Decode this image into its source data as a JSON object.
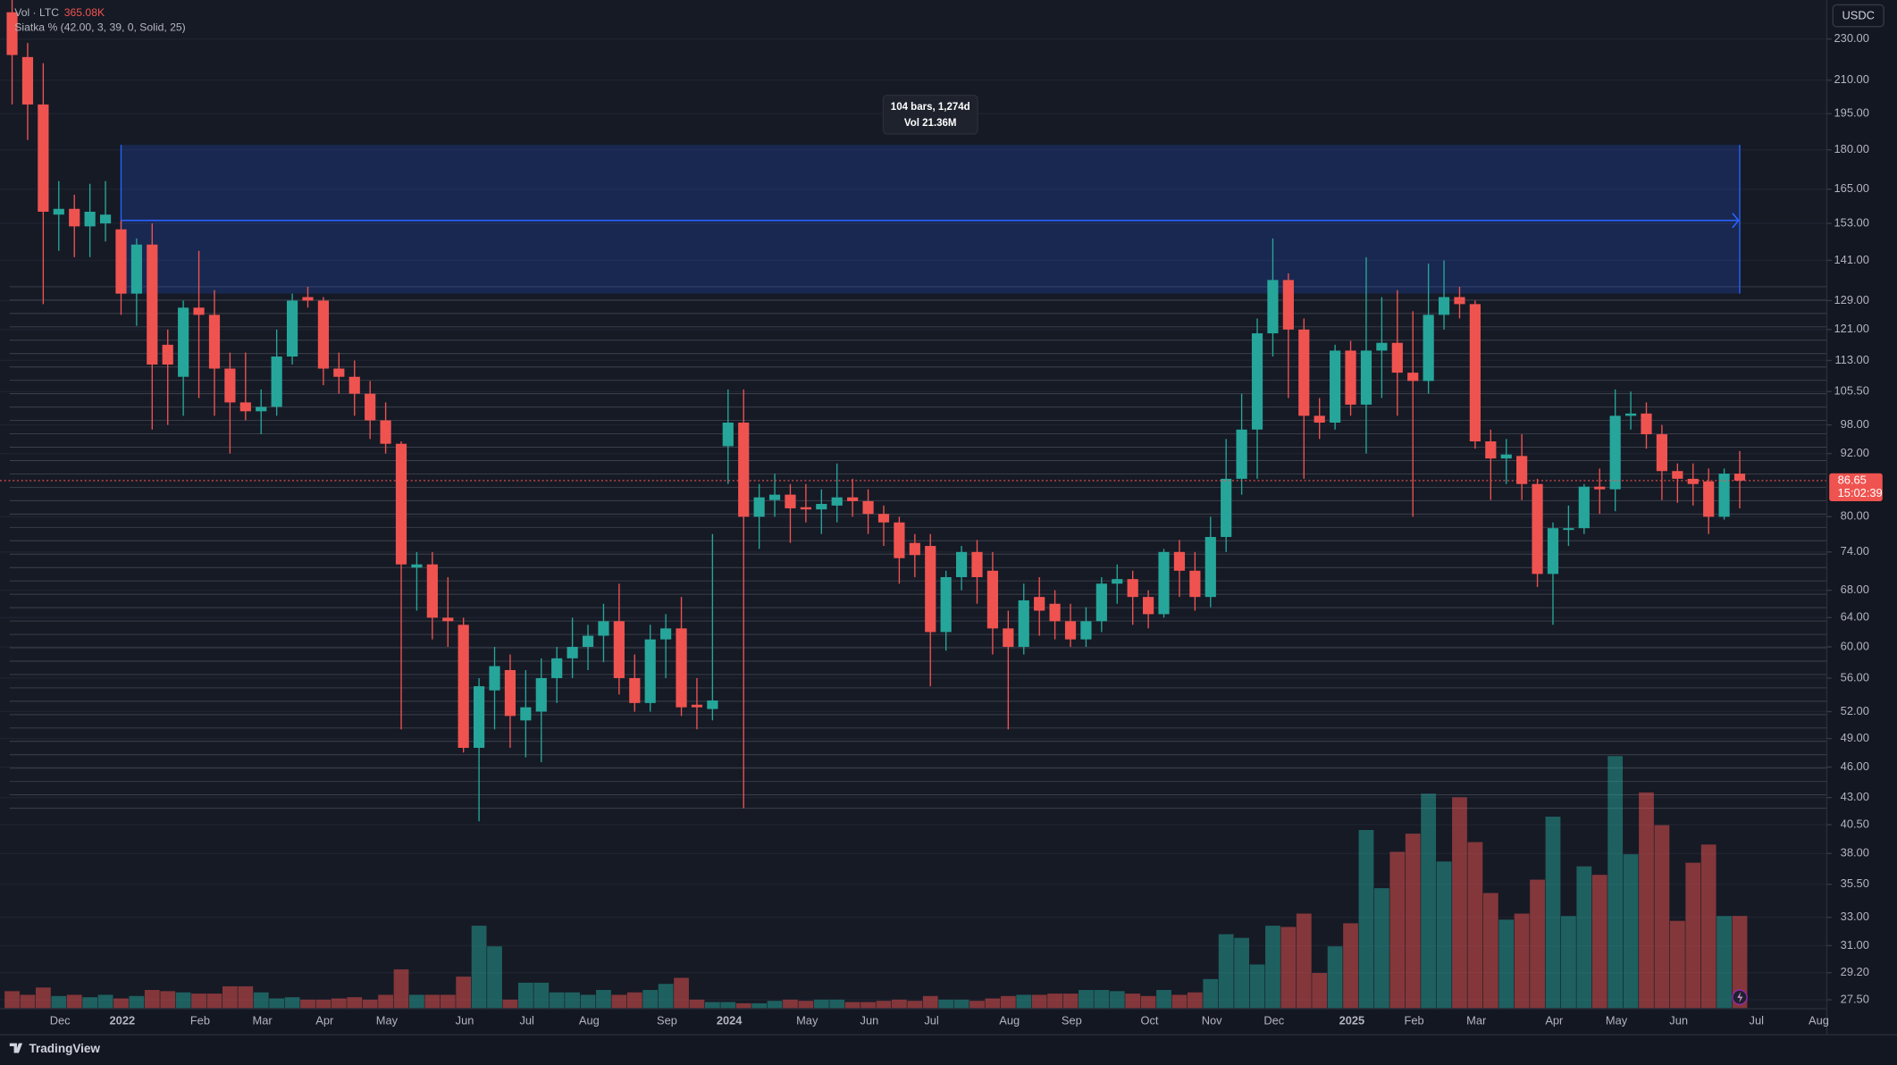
{
  "chart_data": {
    "type": "candlestick",
    "currency": "USDC",
    "volume_title": "Vol · LTC",
    "volume_value_label": "365.08K",
    "indicator_label": "Siatka % (42.00, 3, 39, 0, Solid, 25)",
    "grid_lines": {
      "base": 42,
      "step_pct": 3,
      "count": 39
    },
    "countdown": "15:02:39",
    "up_color": "#26a69a",
    "down_color": "#ef5350",
    "log_scale": true,
    "ylim": [
      27,
      250.7
    ],
    "yticks": [
      {
        "value": 230,
        "label": "230.00"
      },
      {
        "value": 210,
        "label": "210.00"
      },
      {
        "value": 195,
        "label": "195.00"
      },
      {
        "value": 180,
        "label": "180.00"
      },
      {
        "value": 165,
        "label": "165.00"
      },
      {
        "value": 153,
        "label": "153.00"
      },
      {
        "value": 141,
        "label": "141.00"
      },
      {
        "value": 129,
        "label": "129.00"
      },
      {
        "value": 121,
        "label": "121.00"
      },
      {
        "value": 113,
        "label": "113.00"
      },
      {
        "value": 105.5,
        "label": "105.50"
      },
      {
        "value": 98,
        "label": "98.00"
      },
      {
        "value": 92,
        "label": "92.00"
      },
      {
        "value": 80,
        "label": "80.00"
      },
      {
        "value": 74,
        "label": "74.00"
      },
      {
        "value": 68,
        "label": "68.00"
      },
      {
        "value": 64,
        "label": "64.00"
      },
      {
        "value": 60,
        "label": "60.00"
      },
      {
        "value": 56,
        "label": "56.00"
      },
      {
        "value": 52,
        "label": "52.00"
      },
      {
        "value": 49,
        "label": "49.00"
      },
      {
        "value": 46,
        "label": "46.00"
      },
      {
        "value": 43,
        "label": "43.00"
      },
      {
        "value": 40.5,
        "label": "40.50"
      },
      {
        "value": 38,
        "label": "38.00"
      },
      {
        "value": 35.5,
        "label": "35.50"
      },
      {
        "value": 33,
        "label": "33.00"
      },
      {
        "value": 31,
        "label": "31.00"
      },
      {
        "value": 29.2,
        "label": "29.20"
      },
      {
        "value": 27.5,
        "label": "27.50"
      }
    ],
    "categories": [
      null,
      null,
      null,
      "Dec",
      null,
      null,
      null,
      "2022",
      null,
      null,
      null,
      null,
      "Feb",
      null,
      null,
      null,
      "Mar",
      null,
      null,
      null,
      "Apr",
      null,
      null,
      null,
      "May",
      null,
      null,
      null,
      null,
      "Jun",
      null,
      null,
      null,
      "Jul",
      null,
      null,
      null,
      "Aug",
      null,
      null,
      null,
      null,
      "Sep",
      null,
      null,
      null,
      "2024",
      null,
      null,
      null,
      null,
      "May",
      null,
      null,
      null,
      "Jun",
      null,
      null,
      null,
      "Jul",
      null,
      null,
      null,
      null,
      "Aug",
      null,
      null,
      null,
      "Sep",
      null,
      null,
      null,
      null,
      "Oct",
      null,
      null,
      null,
      "Nov",
      null,
      null,
      null,
      "Dec",
      null,
      null,
      null,
      null,
      "2025",
      null,
      null,
      null,
      "Feb",
      null,
      null,
      null,
      "Mar",
      null,
      null,
      null,
      null,
      "Apr",
      null,
      null,
      null,
      "May",
      null,
      null,
      null,
      "Jun",
      null,
      null,
      null,
      null,
      "Jul",
      null,
      null,
      null,
      "Aug"
    ],
    "open": [
      244,
      221,
      199,
      156,
      158,
      152,
      153,
      151,
      131,
      146,
      117,
      109,
      127,
      125,
      111,
      103,
      101,
      102,
      114,
      130,
      129,
      111,
      109,
      105,
      99,
      94,
      71.5,
      72,
      64,
      63,
      48,
      54.5,
      57,
      51,
      52,
      56,
      58.5,
      60,
      61.5,
      63.5,
      56,
      53,
      61,
      62.5,
      52.8,
      52.3,
      93.5,
      98.5,
      80,
      83,
      84,
      81.7,
      81.3,
      82,
      83.5,
      82.8,
      80.5,
      79,
      75.5,
      75,
      62,
      70,
      74,
      71,
      62.5,
      60,
      67,
      66,
      63.5,
      61,
      63.5,
      69,
      69.7,
      67,
      64.5,
      74,
      71,
      67,
      76.5,
      87,
      97,
      120,
      135,
      121,
      100,
      98.5,
      115.5,
      102.5,
      115.5,
      117.5,
      110,
      108,
      125,
      130,
      128,
      94.5,
      91,
      91.5,
      86,
      70.5,
      77.7,
      78,
      85.5,
      85,
      100,
      100.5,
      96,
      88.5,
      87,
      86.5,
      80,
      88,
      null,
      null,
      null,
      null,
      null
    ],
    "high": [
      252,
      228,
      218,
      168,
      163,
      167,
      168,
      154,
      148,
      153,
      121,
      129,
      144,
      132,
      115,
      115,
      106,
      121,
      131,
      133,
      130,
      115,
      113,
      108,
      103,
      94.5,
      74,
      74,
      70,
      64,
      56,
      60,
      59,
      57,
      58.5,
      60,
      64,
      63,
      66,
      69,
      59,
      63,
      64.5,
      67,
      56,
      77,
      106,
      106,
      86,
      88,
      86,
      86,
      85,
      90,
      87,
      85,
      82,
      80,
      77,
      77,
      71,
      75,
      76,
      74,
      65,
      69,
      70,
      68,
      66,
      65.5,
      70,
      72,
      71,
      68,
      74.5,
      76,
      74,
      80,
      95,
      105,
      124,
      148,
      137,
      124,
      104,
      117,
      118,
      142,
      130,
      132,
      126,
      140,
      141,
      133,
      129,
      97,
      95,
      96,
      87,
      79,
      82,
      86,
      89,
      106,
      105.5,
      103,
      98,
      90,
      90,
      89,
      89,
      92.5,
      null,
      null,
      null,
      null,
      null
    ],
    "low": [
      199,
      184,
      128,
      144,
      142,
      142,
      147,
      125,
      122,
      97,
      98,
      100,
      104,
      100,
      92,
      99,
      96,
      100,
      112,
      127,
      107,
      105,
      100,
      95,
      92,
      50,
      65,
      61,
      60,
      47.5,
      40.8,
      50,
      48,
      47,
      46.5,
      53,
      56,
      57,
      58,
      54,
      52,
      52,
      56,
      51.5,
      50,
      51,
      86,
      42,
      74.5,
      80,
      75.5,
      79,
      77,
      79,
      80,
      77,
      75,
      69,
      70,
      55,
      59.5,
      68,
      66,
      59,
      50,
      59,
      61.5,
      61,
      60,
      60,
      62,
      66,
      63,
      62.5,
      64,
      67,
      65,
      65.5,
      74,
      84,
      87,
      114,
      104,
      87,
      95,
      97,
      100,
      92,
      104,
      100,
      80,
      105,
      121,
      124,
      93,
      83,
      86,
      83,
      68.5,
      63,
      75,
      77,
      80.5,
      81,
      97,
      93,
      83,
      82.5,
      82,
      77,
      79.5,
      81.5,
      null,
      null,
      null,
      null,
      null
    ],
    "close": [
      222,
      199,
      157,
      158,
      152,
      157,
      156,
      131,
      146,
      112,
      112,
      127,
      125,
      111,
      103,
      101,
      102,
      114,
      129,
      129,
      111,
      109,
      105,
      99,
      94,
      72,
      72,
      64,
      63.5,
      48,
      55,
      57.5,
      51.5,
      52.5,
      56,
      58.5,
      60,
      61.5,
      63.5,
      56,
      53,
      61,
      62.5,
      52.5,
      52.5,
      53.3,
      98.5,
      80,
      83.5,
      84,
      81.5,
      81.3,
      82.3,
      83.5,
      82.8,
      80.5,
      79,
      73,
      73.5,
      62,
      70,
      74,
      70,
      62.5,
      60,
      66.5,
      65,
      63.5,
      61,
      63.5,
      69,
      69.7,
      67,
      64.5,
      74,
      71,
      67,
      76.5,
      87,
      97,
      120,
      135,
      121,
      100,
      98.5,
      115.5,
      102.5,
      115.5,
      117.5,
      110,
      108,
      125,
      130,
      128,
      94.5,
      91,
      91.8,
      86,
      70.5,
      78,
      78,
      85.5,
      85,
      100,
      100.5,
      96,
      88.5,
      87,
      86,
      80,
      88,
      86.65,
      null,
      null,
      null,
      null,
      null
    ],
    "volume": [
      67200,
      52800,
      81600,
      48000,
      52800,
      43200,
      52800,
      38400,
      48000,
      72000,
      67200,
      62400,
      57600,
      57600,
      86400,
      86400,
      62400,
      38400,
      43200,
      33600,
      33600,
      38400,
      43200,
      33600,
      52800,
      153600,
      52800,
      52800,
      52800,
      124800,
      326400,
      244800,
      33600,
      100800,
      100800,
      62400,
      62400,
      52800,
      72000,
      52800,
      62400,
      72000,
      96000,
      120000,
      33600,
      24000,
      24000,
      19200,
      19200,
      28800,
      33600,
      28800,
      33600,
      33600,
      24000,
      24000,
      28800,
      33600,
      28800,
      48000,
      33600,
      33600,
      28800,
      38400,
      48000,
      52800,
      52800,
      57600,
      57600,
      72000,
      72000,
      67200,
      57600,
      48000,
      72000,
      52800,
      62400,
      115200,
      292800,
      278400,
      172800,
      326400,
      321600,
      374400,
      139200,
      244800,
      336000,
      705600,
      475200,
      619200,
      691200,
      849600,
      580800,
      835200,
      657600,
      456000,
      350400,
      374400,
      508800,
      758400,
      364800,
      561600,
      528000,
      998400,
      609600,
      854400,
      724800,
      345600,
      576000,
      648000,
      364800,
      365080,
      null,
      null,
      null,
      null,
      null
    ],
    "measure": {
      "from_bar": 7,
      "to_bar": 111,
      "top": 182,
      "bottom": 131,
      "arrow": 154,
      "label": "104 bars, 1,274d",
      "volume": "Vol 21.36M"
    },
    "brand": "TradingView"
  }
}
